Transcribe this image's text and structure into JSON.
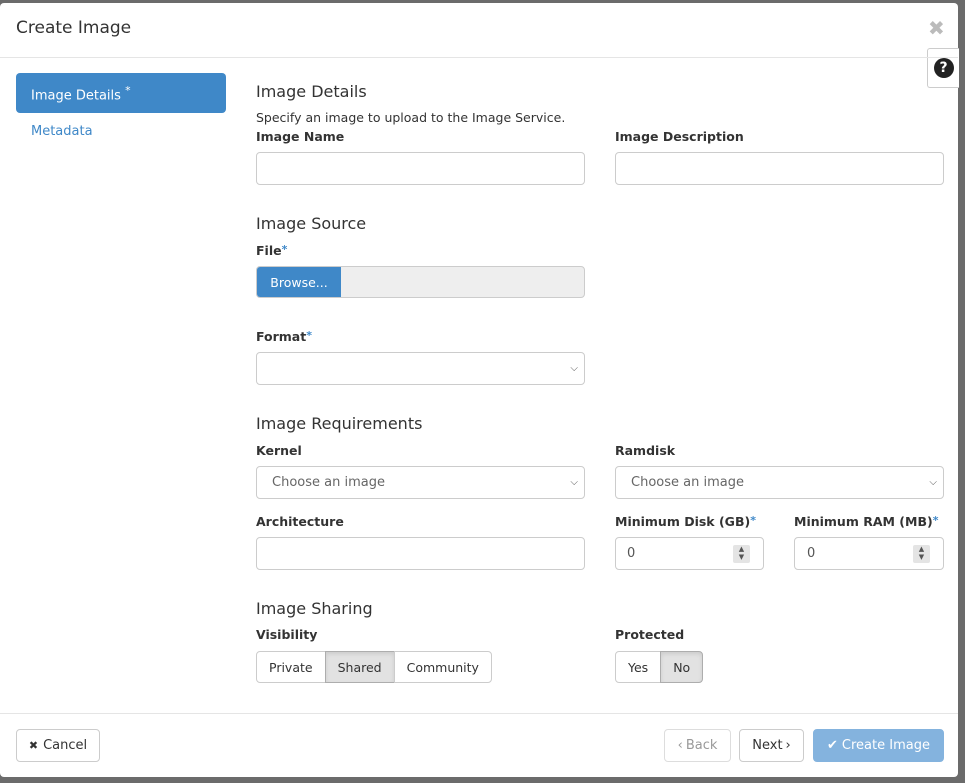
{
  "modal": {
    "title": "Create Image",
    "close_icon": "close-icon",
    "help_icon": "question-circle-icon"
  },
  "sidebar": {
    "items": [
      {
        "label": "Image Details",
        "required": "*",
        "active": true
      },
      {
        "label": "Metadata",
        "active": false
      }
    ]
  },
  "details": {
    "heading": "Image Details",
    "description": "Specify an image to upload to the Image Service.",
    "name_label": "Image Name",
    "name_value": "",
    "desc_label": "Image Description",
    "desc_value": ""
  },
  "source": {
    "heading": "Image Source",
    "file_label": "File",
    "required": "*",
    "browse_label": "Browse...",
    "file_value": "",
    "format_label": "Format",
    "format_value": ""
  },
  "requirements": {
    "heading": "Image Requirements",
    "kernel_label": "Kernel",
    "kernel_value": "Choose an image",
    "ramdisk_label": "Ramdisk",
    "ramdisk_value": "Choose an image",
    "arch_label": "Architecture",
    "arch_value": "",
    "min_disk_label": "Minimum Disk (GB)",
    "min_disk_value": "0",
    "min_ram_label": "Minimum RAM (MB)",
    "min_ram_value": "0"
  },
  "sharing": {
    "heading": "Image Sharing",
    "visibility_label": "Visibility",
    "visibility_options": [
      "Private",
      "Shared",
      "Community"
    ],
    "visibility_selected": "Shared",
    "protected_label": "Protected",
    "protected_options": [
      "Yes",
      "No"
    ],
    "protected_selected": "No"
  },
  "footer": {
    "cancel_label": "Cancel",
    "back_label": "Back",
    "next_label": "Next",
    "create_label": "Create Image",
    "back_disabled": true,
    "create_disabled": true,
    "accent": "#3f88c8"
  }
}
